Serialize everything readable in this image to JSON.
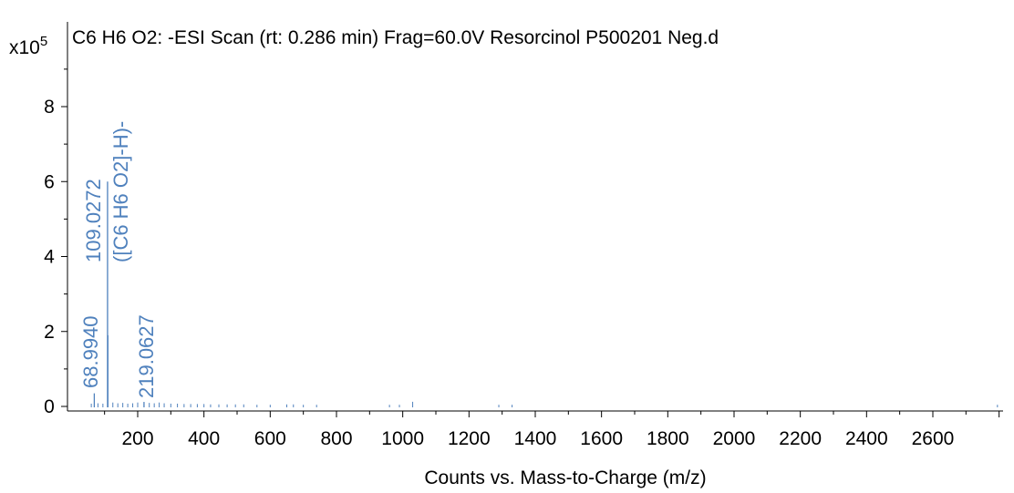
{
  "chart_data": {
    "type": "bar",
    "title": "C6 H6 O2: -ESI Scan (rt: 0.286 min) Frag=60.0V Resorcinol P500201 Neg.d",
    "xlabel": "Counts vs. Mass-to-Charge (m/z)",
    "ylabel": "",
    "y_multiplier_base": "x10",
    "y_multiplier_exp": "5",
    "xlim": [
      0,
      2800
    ],
    "ylim": [
      0,
      10
    ],
    "x_ticks": [
      200,
      400,
      600,
      800,
      1000,
      1200,
      1400,
      1600,
      1800,
      2000,
      2200,
      2400,
      2600
    ],
    "y_ticks": [
      0,
      2,
      4,
      6,
      8
    ],
    "series_color": "#4f81bd",
    "labeled_peaks": [
      {
        "mz": 68.994,
        "intensity": 0.35,
        "label": "68.9940"
      },
      {
        "mz": 109.0272,
        "intensity": 6.0,
        "label": "109.0272",
        "annotation": "([C6 H6 O2]-H)-"
      },
      {
        "mz": 110.03,
        "intensity": 1.9,
        "label": ""
      },
      {
        "mz": 219.0627,
        "intensity": 0.12,
        "label": "219.0627"
      }
    ],
    "minor_peaks": [
      {
        "mz": 60,
        "intensity": 0.05
      },
      {
        "mz": 80,
        "intensity": 0.06
      },
      {
        "mz": 95,
        "intensity": 0.05
      },
      {
        "mz": 125,
        "intensity": 0.08
      },
      {
        "mz": 140,
        "intensity": 0.06
      },
      {
        "mz": 155,
        "intensity": 0.07
      },
      {
        "mz": 170,
        "intensity": 0.05
      },
      {
        "mz": 185,
        "intensity": 0.06
      },
      {
        "mz": 200,
        "intensity": 0.08
      },
      {
        "mz": 235,
        "intensity": 0.07
      },
      {
        "mz": 250,
        "intensity": 0.06
      },
      {
        "mz": 265,
        "intensity": 0.08
      },
      {
        "mz": 280,
        "intensity": 0.06
      },
      {
        "mz": 300,
        "intensity": 0.05
      },
      {
        "mz": 320,
        "intensity": 0.05
      },
      {
        "mz": 340,
        "intensity": 0.04
      },
      {
        "mz": 360,
        "intensity": 0.04
      },
      {
        "mz": 380,
        "intensity": 0.04
      },
      {
        "mz": 400,
        "intensity": 0.04
      },
      {
        "mz": 420,
        "intensity": 0.03
      },
      {
        "mz": 445,
        "intensity": 0.03
      },
      {
        "mz": 470,
        "intensity": 0.03
      },
      {
        "mz": 495,
        "intensity": 0.03
      },
      {
        "mz": 520,
        "intensity": 0.03
      },
      {
        "mz": 560,
        "intensity": 0.02
      },
      {
        "mz": 600,
        "intensity": 0.02
      },
      {
        "mz": 650,
        "intensity": 0.03
      },
      {
        "mz": 670,
        "intensity": 0.03
      },
      {
        "mz": 700,
        "intensity": 0.02
      },
      {
        "mz": 740,
        "intensity": 0.02
      },
      {
        "mz": 960,
        "intensity": 0.02
      },
      {
        "mz": 990,
        "intensity": 0.02
      },
      {
        "mz": 1030,
        "intensity": 0.1
      },
      {
        "mz": 1290,
        "intensity": 0.02
      },
      {
        "mz": 1330,
        "intensity": 0.02
      },
      {
        "mz": 2795,
        "intensity": 0.02
      }
    ]
  }
}
